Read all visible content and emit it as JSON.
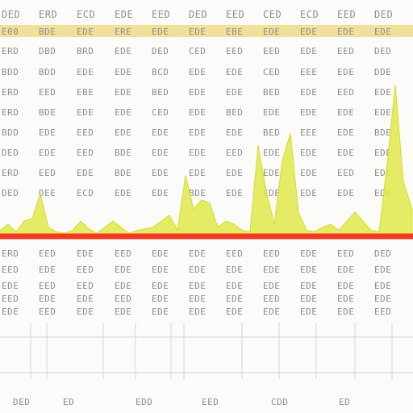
{
  "colors": {
    "background": "#fbfbfa",
    "text": "#8d8d8d",
    "highlight_row": "#f1e09a",
    "area_fill": "#e2e84a",
    "area_stroke": "#d4dc2a",
    "baseline": "#f03a22",
    "gridline": "#d6d6d6"
  },
  "table": {
    "columns": 11,
    "upper_rows": [
      [
        "DED",
        "ERD",
        "ECD",
        "EDE",
        "EED",
        "DED",
        "EED",
        "CED",
        "ECD",
        "EED",
        "DED"
      ],
      [
        "E00",
        "BDE",
        "EDE",
        "ERE",
        "EDE",
        "EDE",
        "EBE",
        "EDE",
        "EDE",
        "EDE",
        "EDE"
      ],
      [
        "ERD",
        "DBD",
        "BRD",
        "EDE",
        "DED",
        "CED",
        "EED",
        "EED",
        "EDE",
        "EED",
        "DED"
      ],
      [
        "BDD",
        "BDD",
        "EDE",
        "EDE",
        "BCD",
        "EDE",
        "EDE",
        "CED",
        "EEE",
        "EDE",
        "DDE"
      ],
      [
        "ERD",
        "EED",
        "EBE",
        "EDE",
        "BED",
        "EDE",
        "EDE",
        "BED",
        "EDE",
        "EED",
        "EDE"
      ],
      [
        "ERD",
        "BDE",
        "EDE",
        "EDE",
        "CED",
        "EDE",
        "BED",
        "EDE",
        "EDE",
        "EDE",
        "EDE"
      ],
      [
        "BDD",
        "EDE",
        "EED",
        "EDE",
        "EDE",
        "EDE",
        "EDE",
        "BED",
        "EEE",
        "EDE",
        "BDE"
      ],
      [
        "DED",
        "EDE",
        "EED",
        "BDE",
        "EDE",
        "EDE",
        "EED",
        "EDE",
        "EDE",
        "EDE",
        "EDE"
      ],
      [
        "ERD",
        "EED",
        "EDE",
        "BDE",
        "EDE",
        "EDE",
        "EDE",
        "EDE",
        "EDE",
        "EED",
        "EDE"
      ],
      [
        "DED",
        "DEE",
        "ECD",
        "EDE",
        "EDE",
        "BDE",
        "EDE",
        "EDE",
        "EDE",
        "EDE",
        "EDE"
      ]
    ],
    "lower_rows": [
      [
        "ERD",
        "EED",
        "EDE",
        "EED",
        "EDE",
        "EDE",
        "EED",
        "EED",
        "EDE",
        "EED",
        "DED"
      ],
      [
        "EED",
        "EDE",
        "EED",
        "EDE",
        "EDE",
        "EDE",
        "EDE",
        "EDE",
        "EDE",
        "EDE",
        "EDE"
      ],
      [
        "EDE",
        "EED",
        "EED",
        "EDE",
        "EDE",
        "EDE",
        "EDE",
        "EDE",
        "EDE",
        "EDE",
        "EDE"
      ],
      [
        "EED",
        "EDE",
        "EDE",
        "EED",
        "EDE",
        "EDE",
        "EDE",
        "EED",
        "EDE",
        "EDE",
        "EDE"
      ],
      [
        "EDE",
        "EED",
        "EDE",
        "EDE",
        "EDE",
        "EDE",
        "EDE",
        "EDE",
        "EDE",
        "EDE",
        "EED"
      ]
    ],
    "bottom_labels": [
      "DED",
      "ED",
      "EDD",
      "EED",
      "CDD",
      "ED"
    ]
  },
  "chart_data": {
    "type": "area",
    "title": "",
    "xlabel": "",
    "ylabel": "",
    "grid": true,
    "x": [
      0,
      10,
      20,
      30,
      40,
      50,
      60,
      70,
      80,
      90,
      100,
      110,
      120,
      130,
      140,
      150,
      160,
      170,
      180,
      190,
      200,
      210,
      220,
      230,
      240,
      250,
      260,
      270,
      280,
      290,
      300,
      310,
      320,
      330,
      340,
      350,
      360,
      370,
      380,
      390,
      400,
      410,
      420,
      430,
      440,
      450,
      460,
      470,
      480,
      490,
      500,
      511
    ],
    "values": [
      4,
      8,
      3,
      10,
      12,
      28,
      6,
      3,
      2,
      4,
      10,
      5,
      2,
      6,
      10,
      6,
      2,
      4,
      5,
      6,
      10,
      14,
      4,
      40,
      18,
      24,
      22,
      6,
      10,
      8,
      4,
      3,
      60,
      30,
      8,
      50,
      68,
      16,
      4,
      3,
      6,
      8,
      4,
      10,
      16,
      10,
      4,
      3,
      48,
      100,
      36,
      18
    ],
    "ylim": [
      0,
      100
    ]
  }
}
